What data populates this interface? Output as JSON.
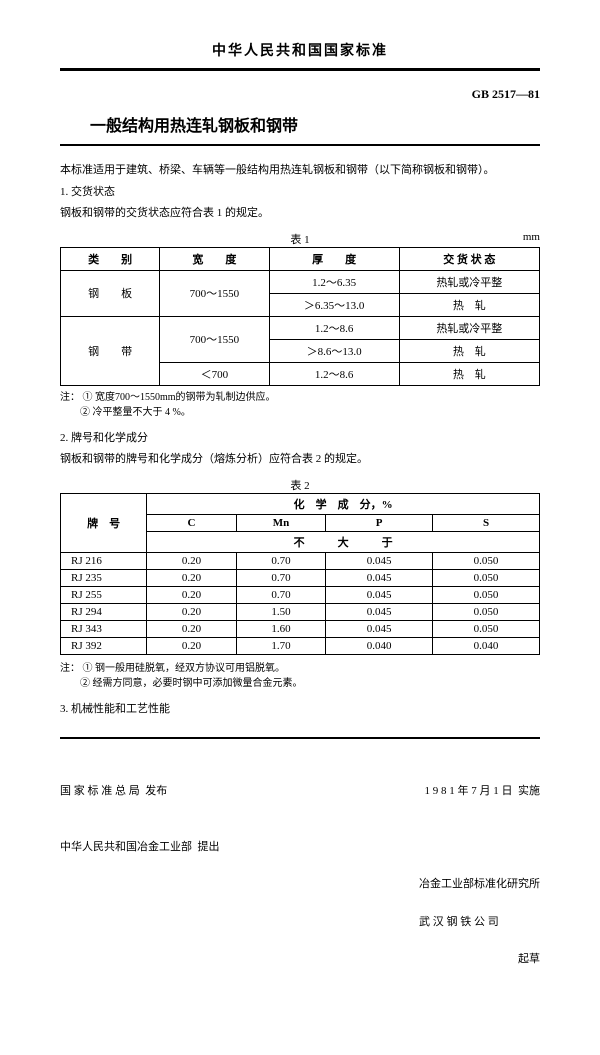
{
  "header": "中华人民共和国国家标准",
  "stdnum": "GB 2517—81",
  "title": "一般结构用热连轧钢板和钢带",
  "intro": "本标准适用于建筑、桥梁、车辆等一般结构用热连轧钢板和钢带（以下简称钢板和钢带）。",
  "s1_head": "1. 交货状态",
  "s1_body": "钢板和钢带的交货状态应符合表 1 的规定。",
  "t1": {
    "caption": "表 1",
    "unit": "mm",
    "cols": [
      "类　　别",
      "宽　　度",
      "厚　　度",
      "交 货 状 态"
    ],
    "rows": [
      {
        "cat": "钢　　板",
        "width": "700～1550",
        "thick": "1.2～6.35",
        "state": "热轧或冷平整",
        "cat_rs": 2,
        "w_rs": 2
      },
      {
        "thick": "＞6.35～13.0",
        "state": "热　轧"
      },
      {
        "cat": "钢　　带",
        "width": "700～1550",
        "thick": "1.2～8.6",
        "state": "热轧或冷平整",
        "cat_rs": 3,
        "w_rs": 2
      },
      {
        "thick": "＞8.6～13.0",
        "state": "热　轧"
      },
      {
        "width": "＜700",
        "thick": "1.2～8.6",
        "state": "热　轧"
      }
    ]
  },
  "note1_label": "注：",
  "note1_1": "① 宽度700～1550mm的钢带为轧制边供应。",
  "note1_2": "② 冷平整量不大于 4 %。",
  "s2_head": "2. 牌号和化学成分",
  "s2_body": "钢板和钢带的牌号和化学成分（熔炼分析）应符合表 2 的规定。",
  "t2": {
    "caption": "表 2",
    "grade_label": "牌　号",
    "chem_label": "化　学　成　分，%",
    "cols": [
      "C",
      "Mn",
      "P",
      "S"
    ],
    "sub": "不　　　大　　　于",
    "rows": [
      {
        "g": "RJ 216",
        "c": "0.20",
        "mn": "0.70",
        "p": "0.045",
        "s": "0.050"
      },
      {
        "g": "RJ 235",
        "c": "0.20",
        "mn": "0.70",
        "p": "0.045",
        "s": "0.050"
      },
      {
        "g": "RJ 255",
        "c": "0.20",
        "mn": "0.70",
        "p": "0.045",
        "s": "0.050"
      },
      {
        "g": "RJ 294",
        "c": "0.20",
        "mn": "1.50",
        "p": "0.045",
        "s": "0.050"
      },
      {
        "g": "RJ 343",
        "c": "0.20",
        "mn": "1.60",
        "p": "0.045",
        "s": "0.050"
      },
      {
        "g": "RJ 392",
        "c": "0.20",
        "mn": "1.70",
        "p": "0.040",
        "s": "0.040"
      }
    ]
  },
  "note2_1": "① 钢一般用硅脱氧，经双方协议可用铝脱氧。",
  "note2_2": "② 经需方同意，必要时钢中可添加微量合金元素。",
  "s3_head": "3. 机械性能和工艺性能",
  "footer": {
    "issuer": "国 家 标 准 总 局  发布",
    "proposer": "中华人民共和国冶金工业部  提出",
    "date": "1 9 8 1 年 7 月 1 日  实施",
    "drafter1": "冶金工业部标准化研究所",
    "drafter2": "武 汉 钢 铁 公 司",
    "draft_suffix": "起草"
  }
}
